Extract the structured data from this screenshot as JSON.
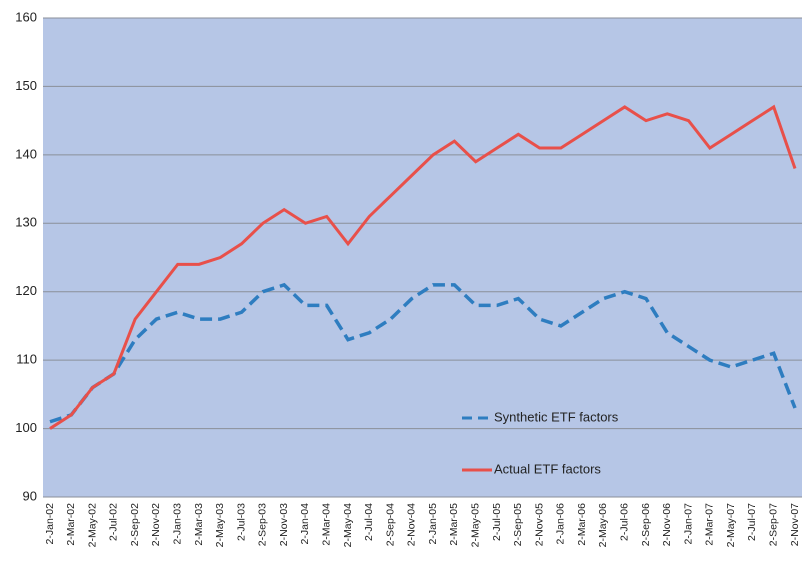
{
  "chart_data": {
    "type": "line",
    "categories": [
      "2-Jan-02",
      "2-Mar-02",
      "2-May-02",
      "2-Jul-02",
      "2-Sep-02",
      "2-Nov-02",
      "2-Jan-03",
      "2-Mar-03",
      "2-May-03",
      "2-Jul-03",
      "2-Sep-03",
      "2-Nov-03",
      "2-Jan-04",
      "2-Mar-04",
      "2-May-04",
      "2-Jul-04",
      "2-Sep-04",
      "2-Nov-04",
      "2-Jan-05",
      "2-Mar-05",
      "2-May-05",
      "2-Jul-05",
      "2-Sep-05",
      "2-Nov-05",
      "2-Jan-06",
      "2-Mar-06",
      "2-May-06",
      "2-Jul-06",
      "2-Sep-06",
      "2-Nov-06",
      "2-Jan-07",
      "2-Mar-07",
      "2-May-07",
      "2-Jul-07",
      "2-Sep-07",
      "2-Nov-07"
    ],
    "series": [
      {
        "name": "Synthetic ETF factors",
        "color": "#2e7dc0",
        "line_style": "dashed",
        "values": [
          101,
          102,
          106,
          108,
          113,
          116,
          117,
          116,
          116,
          117,
          120,
          121,
          118,
          118,
          113,
          114,
          116,
          119,
          121,
          121,
          118,
          118,
          119,
          116,
          115,
          117,
          119,
          120,
          119,
          114,
          112,
          110,
          109,
          110,
          111,
          103
        ]
      },
      {
        "name": "Actual ETF factors",
        "color": "#e8504a",
        "line_style": "solid",
        "values": [
          100,
          102,
          106,
          108,
          116,
          120,
          124,
          124,
          125,
          127,
          130,
          132,
          130,
          131,
          127,
          131,
          134,
          137,
          140,
          142,
          139,
          141,
          143,
          141,
          141,
          143,
          145,
          147,
          145,
          146,
          145,
          141,
          143,
          145,
          147,
          138
        ]
      }
    ],
    "ylim": [
      90,
      160
    ],
    "yticks": [
      90,
      100,
      110,
      120,
      130,
      140,
      150,
      160
    ],
    "grid": true
  }
}
